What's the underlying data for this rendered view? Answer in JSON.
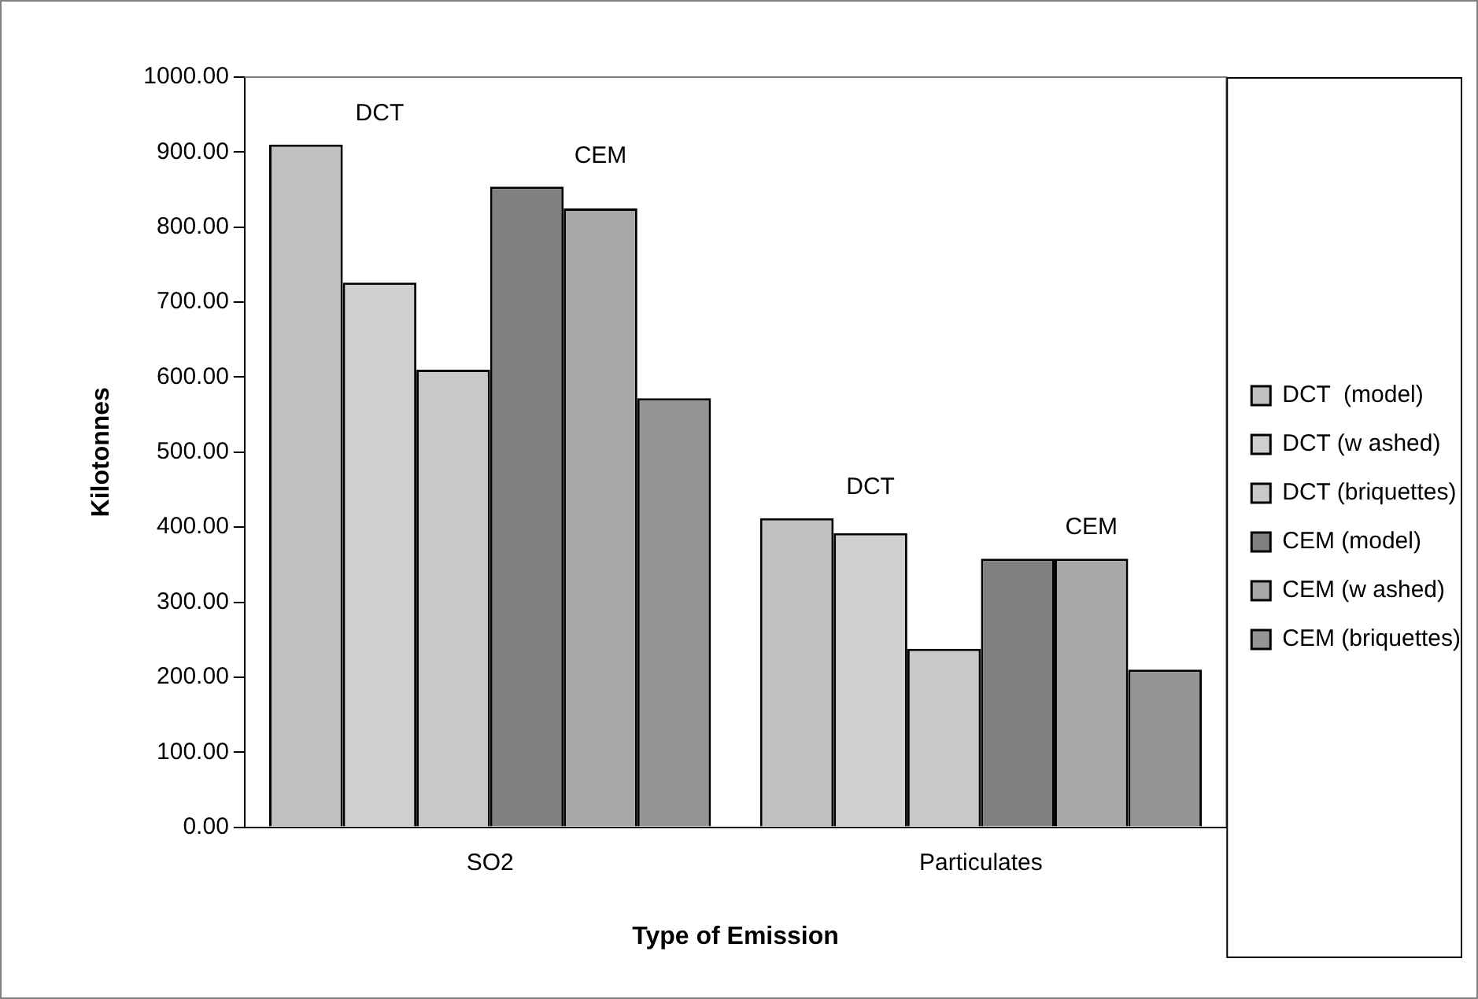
{
  "chart_data": {
    "type": "bar",
    "xlabel": "Type of Emission",
    "ylabel": "Kilotonnes",
    "categories": [
      "SO2",
      "Particulates"
    ],
    "series": [
      {
        "name": "DCT  (model)",
        "color": "#c0c0c0",
        "values": [
          910,
          412
        ]
      },
      {
        "name": "DCT (w ashed)",
        "color": "#cfcfcf",
        "values": [
          726,
          392
        ]
      },
      {
        "name": "DCT (briquettes)",
        "color": "#c8c8c8",
        "values": [
          610,
          238
        ]
      },
      {
        "name": "CEM (model)",
        "color": "#808080",
        "values": [
          854,
          358
        ]
      },
      {
        "name": "CEM (w ashed)",
        "color": "#a8a8a8",
        "values": [
          825,
          358
        ]
      },
      {
        "name": "CEM (briquettes)",
        "color": "#959595",
        "values": [
          572,
          210
        ]
      }
    ],
    "ylim": [
      0,
      1000
    ],
    "yticks": [
      {
        "value": 0,
        "label": "0.00"
      },
      {
        "value": 100,
        "label": "100.00"
      },
      {
        "value": 200,
        "label": "200.00"
      },
      {
        "value": 300,
        "label": "300.00"
      },
      {
        "value": 400,
        "label": "400.00"
      },
      {
        "value": 500,
        "label": "500.00"
      },
      {
        "value": 600,
        "label": "600.00"
      },
      {
        "value": 700,
        "label": "700.00"
      },
      {
        "value": 800,
        "label": "800.00"
      },
      {
        "value": 900,
        "label": "900.00"
      },
      {
        "value": 1000,
        "label": "1000.00"
      }
    ],
    "annotations": [
      "DCT",
      "CEM",
      "DCT",
      "CEM"
    ],
    "grid": false,
    "legend": "right"
  }
}
